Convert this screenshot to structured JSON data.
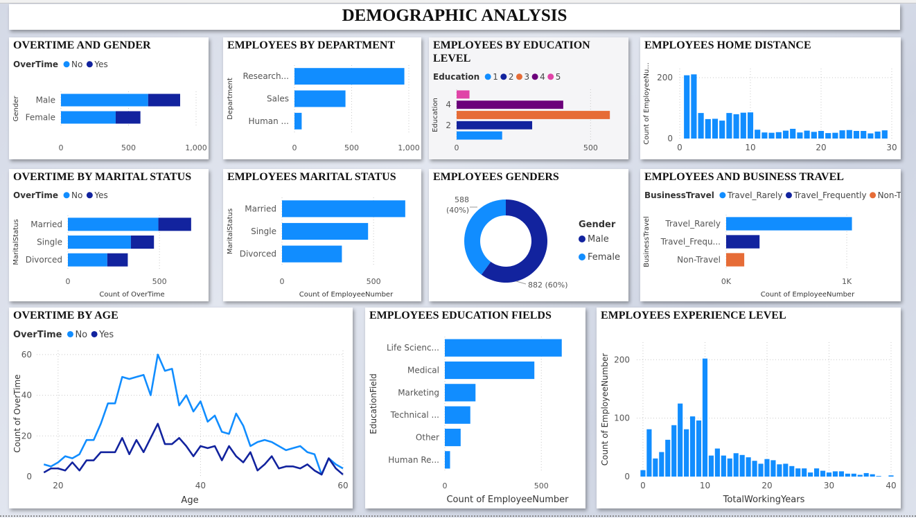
{
  "dashboard_title": "DEMOGRAPHIC ANALYSIS",
  "colors": {
    "light_blue": "#118DFF",
    "dark_blue": "#12239E",
    "orange": "#E66C37",
    "purple": "#6B007B",
    "pink": "#E044A7"
  },
  "panels": {
    "overtime_gender": {
      "title": "OVERTIME AND GENDER"
    },
    "dept": {
      "title": "EMPLOYEES BY DEPARTMENT"
    },
    "education": {
      "title": "EMPLOYEES BY EDUCATION LEVEL"
    },
    "home_distance": {
      "title": "EMPLOYEES HOME DISTANCE"
    },
    "overtime_marital": {
      "title": "OVERTIME BY MARITAL STATUS"
    },
    "marital": {
      "title": "EMPLOYEES MARITAL STATUS"
    },
    "genders": {
      "title": "EMPLOYEES GENDERS"
    },
    "travel": {
      "title": "EMPLOYEES AND BUSINESS TRAVEL"
    },
    "overtime_age": {
      "title": "OVERTIME BY AGE"
    },
    "edu_fields": {
      "title": "EMPLOYEES EDUCATION FIELDS"
    },
    "experience": {
      "title": "EMPLOYEES EXPERIENCE LEVEL"
    }
  },
  "chart_data": [
    {
      "id": "overtime_gender",
      "type": "bar",
      "orientation": "horizontal",
      "stacked": true,
      "legend_title": "OverTime",
      "legend_placement": "top-left",
      "ylabel": "Gender",
      "categories": [
        "Male",
        "Female"
      ],
      "series": [
        {
          "name": "No",
          "values": [
            645,
            405
          ]
        },
        {
          "name": "Yes",
          "values": [
            237,
            183
          ]
        }
      ],
      "xlim": [
        0,
        1000
      ],
      "xticks": [
        0,
        500,
        1000
      ],
      "xtick_labels": [
        "0",
        "500",
        "1,000"
      ],
      "grid": true
    },
    {
      "id": "dept",
      "type": "bar",
      "orientation": "horizontal",
      "ylabel": "Department",
      "categories": [
        "Research...",
        "Sales",
        "Human ..."
      ],
      "values": [
        961,
        446,
        63
      ],
      "xlim": [
        0,
        1000
      ],
      "xticks": [
        0,
        500,
        1000
      ],
      "xtick_labels": [
        "0",
        "500",
        "1,000"
      ],
      "grid": true
    },
    {
      "id": "education",
      "type": "bar",
      "orientation": "horizontal",
      "legend_title": "Education",
      "legend_placement": "top-left",
      "ylabel": "Education",
      "categories": [
        "5",
        "4",
        "3",
        "2",
        "1"
      ],
      "values": [
        48,
        398,
        572,
        282,
        170
      ],
      "legend_entries": [
        "1",
        "2",
        "3",
        "4",
        "5"
      ],
      "ytick_labels": [
        "",
        "4",
        "",
        "2",
        ""
      ],
      "xlim": [
        0,
        600
      ],
      "xticks": [
        0,
        500
      ],
      "xtick_labels": [
        "0",
        "500"
      ],
      "grid": true
    },
    {
      "id": "home_distance",
      "type": "bar",
      "orientation": "vertical",
      "ylabel": "Count of EmployeeNu...",
      "x": [
        1,
        2,
        3,
        4,
        5,
        6,
        7,
        8,
        9,
        10,
        11,
        12,
        13,
        14,
        15,
        16,
        17,
        18,
        19,
        20,
        21,
        22,
        23,
        24,
        25,
        26,
        27,
        28,
        29
      ],
      "values": [
        208,
        211,
        84,
        64,
        65,
        59,
        84,
        80,
        85,
        86,
        29,
        20,
        19,
        21,
        26,
        32,
        20,
        26,
        22,
        25,
        18,
        19,
        27,
        28,
        25,
        25,
        17,
        23,
        27
      ],
      "xlim": [
        0,
        30
      ],
      "xticks": [
        0,
        10,
        20,
        30
      ],
      "ylim": [
        0,
        230
      ],
      "yticks": [
        0,
        200
      ],
      "grid": true
    },
    {
      "id": "overtime_marital",
      "type": "bar",
      "orientation": "horizontal",
      "stacked": true,
      "legend_title": "OverTime",
      "legend_placement": "top-left",
      "ylabel": "MaritalStatus",
      "xlabel": "Count of OverTime",
      "categories": [
        "Married",
        "Single",
        "Divorced"
      ],
      "series": [
        {
          "name": "No",
          "values": [
            494,
            344,
            215
          ]
        },
        {
          "name": "Yes",
          "values": [
            179,
            126,
            112
          ]
        }
      ],
      "xlim": [
        0,
        700
      ],
      "xticks": [
        0,
        500
      ],
      "grid": true
    },
    {
      "id": "marital",
      "type": "bar",
      "orientation": "horizontal",
      "ylabel": "MaritalStatus",
      "xlabel": "Count of EmployeeNumber",
      "categories": [
        "Married",
        "Single",
        "Divorced"
      ],
      "values": [
        673,
        470,
        327
      ],
      "xlim": [
        0,
        700
      ],
      "xticks": [
        0,
        500
      ],
      "grid": true
    },
    {
      "id": "genders",
      "type": "pie",
      "donut": true,
      "legend_title": "Gender",
      "legend_placement": "right",
      "series": [
        {
          "name": "Male",
          "value": 882,
          "label": "882 (60%)"
        },
        {
          "name": "Female",
          "value": 588,
          "label": "588\n(40%)"
        }
      ]
    },
    {
      "id": "travel",
      "type": "bar",
      "orientation": "horizontal",
      "legend_title": "BusinessTravel",
      "legend_placement": "top-left",
      "ylabel": "BusinessTravel",
      "xlabel": "Count of EmployeeNumber",
      "legend_entries": [
        "Travel_Rarely",
        "Travel_Frequently",
        "Non-Travel"
      ],
      "categories": [
        "Travel_Rarely",
        "Travel_Frequ...",
        "Non-Travel"
      ],
      "values": [
        1043,
        277,
        150
      ],
      "xlim": [
        0,
        1350
      ],
      "xticks": [
        0,
        1000
      ],
      "xtick_labels": [
        "0K",
        "1K"
      ],
      "grid": true
    },
    {
      "id": "overtime_age",
      "type": "line",
      "legend_title": "OverTime",
      "legend_placement": "top-left",
      "xlabel": "Age",
      "ylabel": "Count of OverTime",
      "x": [
        18,
        19,
        20,
        21,
        22,
        23,
        24,
        25,
        26,
        27,
        28,
        29,
        30,
        31,
        32,
        33,
        34,
        35,
        36,
        37,
        38,
        39,
        40,
        41,
        42,
        43,
        44,
        45,
        46,
        47,
        48,
        49,
        50,
        51,
        52,
        53,
        54,
        55,
        56,
        57,
        58,
        59,
        60
      ],
      "series": [
        {
          "name": "No",
          "values": [
            6,
            5,
            7,
            10,
            9,
            11,
            18,
            18,
            26,
            36,
            36,
            49,
            48,
            49,
            50,
            40,
            60,
            52,
            53,
            35,
            40,
            32,
            37,
            27,
            30,
            22,
            21,
            31,
            25,
            15,
            17,
            18,
            17,
            15,
            13,
            14,
            15,
            12,
            11,
            1,
            9,
            6,
            4
          ]
        },
        {
          "name": "Yes",
          "values": [
            2,
            4,
            4,
            3,
            7,
            3,
            8,
            8,
            12,
            12,
            12,
            19,
            11,
            18,
            12,
            19,
            26,
            16,
            16,
            19,
            15,
            10,
            15,
            14,
            15,
            8,
            15,
            10,
            7,
            12,
            3,
            6,
            10,
            4,
            5,
            5,
            4,
            6,
            3,
            1,
            9,
            4,
            1
          ]
        }
      ],
      "xlim": [
        17,
        60
      ],
      "xticks": [
        20,
        40,
        60
      ],
      "ylim": [
        0,
        62
      ],
      "yticks": [
        0,
        20,
        40,
        60
      ],
      "grid": true
    },
    {
      "id": "edu_fields",
      "type": "bar",
      "orientation": "horizontal",
      "ylabel": "EducationField",
      "xlabel": "Count of EmployeeNumber",
      "categories": [
        "Life Scienc...",
        "Medical",
        "Marketing",
        "Technical ...",
        "Other",
        "Human Re..."
      ],
      "values": [
        606,
        464,
        159,
        132,
        82,
        27
      ],
      "xlim": [
        0,
        650
      ],
      "xticks": [
        0,
        500
      ],
      "grid": true
    },
    {
      "id": "experience",
      "type": "bar",
      "orientation": "vertical",
      "xlabel": "TotalWorkingYears",
      "ylabel": "Count of EmployeeNumber",
      "x": [
        0,
        1,
        2,
        3,
        4,
        5,
        6,
        7,
        8,
        9,
        10,
        11,
        12,
        13,
        14,
        15,
        16,
        17,
        18,
        19,
        20,
        21,
        22,
        23,
        24,
        25,
        26,
        27,
        28,
        29,
        30,
        31,
        32,
        33,
        34,
        35,
        36,
        37,
        38,
        40
      ],
      "values": [
        11,
        81,
        31,
        42,
        63,
        88,
        125,
        81,
        103,
        96,
        202,
        36,
        48,
        36,
        31,
        40,
        37,
        33,
        27,
        22,
        30,
        28,
        21,
        22,
        18,
        14,
        14,
        7,
        14,
        10,
        7,
        9,
        9,
        5,
        5,
        3,
        6,
        4,
        1,
        2
      ],
      "xlim": [
        -1,
        40
      ],
      "xticks": [
        0,
        10,
        20,
        30,
        40
      ],
      "ylim": [
        0,
        230
      ],
      "yticks": [
        0,
        100,
        200
      ],
      "grid": true
    }
  ]
}
